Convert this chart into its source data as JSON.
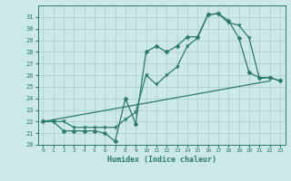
{
  "xlabel": "Humidex (Indice chaleur)",
  "bg_color": "#cce8e8",
  "line_color": "#2d7a6a",
  "grid_color": "#a8cccc",
  "xlim": [
    -0.5,
    23.5
  ],
  "ylim": [
    20,
    32
  ],
  "yticks": [
    20,
    21,
    22,
    23,
    24,
    25,
    26,
    27,
    28,
    29,
    30,
    31
  ],
  "xticks": [
    0,
    1,
    2,
    3,
    4,
    5,
    6,
    7,
    8,
    9,
    10,
    11,
    12,
    13,
    14,
    15,
    16,
    17,
    18,
    19,
    20,
    21,
    22,
    23
  ],
  "line1_x": [
    0,
    1,
    2,
    3,
    4,
    5,
    6,
    7,
    8,
    9,
    10,
    11,
    12,
    13,
    14,
    15,
    16,
    17,
    18,
    19,
    20,
    21,
    22,
    23
  ],
  "line1_y": [
    22,
    22,
    21.2,
    21.2,
    21.2,
    21.2,
    21.0,
    20.3,
    24.0,
    21.8,
    28.0,
    28.5,
    28.0,
    28.5,
    29.3,
    29.3,
    31.2,
    31.3,
    30.7,
    29.2,
    26.2,
    25.8,
    25.8,
    25.5
  ],
  "line2_x": [
    0,
    1,
    2,
    3,
    4,
    5,
    6,
    7,
    8,
    9,
    10,
    11,
    12,
    13,
    14,
    15,
    16,
    17,
    18,
    19,
    20,
    21,
    22,
    23
  ],
  "line2_y": [
    22,
    22,
    22,
    21.5,
    21.5,
    21.5,
    21.5,
    21.5,
    22.2,
    22.8,
    26.0,
    25.2,
    26.0,
    26.7,
    28.5,
    29.2,
    31.2,
    31.3,
    30.5,
    30.3,
    29.2,
    25.7,
    25.8,
    25.5
  ],
  "line3_x": [
    0,
    22
  ],
  "line3_y": [
    22,
    25.5
  ],
  "marker1": "D",
  "marker2": "v",
  "markersize": 2.5
}
